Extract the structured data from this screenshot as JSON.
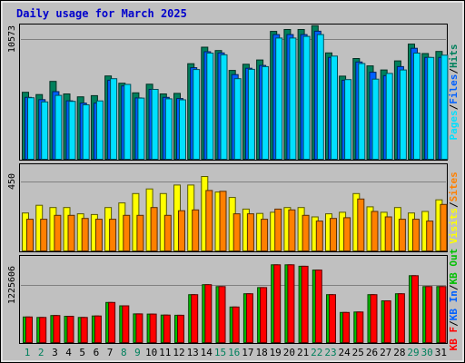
{
  "chart_data": {
    "type": "bar",
    "title": "Daily usage for March 2025",
    "days": [
      "1",
      "2",
      "3",
      "4",
      "5",
      "6",
      "7",
      "8",
      "9",
      "10",
      "11",
      "12",
      "13",
      "14",
      "15",
      "16",
      "17",
      "18",
      "19",
      "20",
      "21",
      "22",
      "23",
      "24",
      "25",
      "26",
      "27",
      "28",
      "29",
      "30",
      "31"
    ],
    "weekend_days": [
      "1",
      "2",
      "8",
      "9",
      "15",
      "16",
      "22",
      "23",
      "29",
      "30"
    ],
    "panels": [
      {
        "id": "traffic_hits",
        "y_tick_label": "10573",
        "y_tick_value": 10573,
        "legend": [
          "Pages",
          "/",
          "Files",
          "/",
          "Hits"
        ],
        "legend_colors": [
          "#00e0ff",
          "#000000",
          "#0060ff",
          "#000000",
          "#00805c"
        ],
        "series": [
          {
            "name": "Hits",
            "color": "#00805c",
            "values": [
              5950,
              5750,
              6900,
              5800,
              5550,
              5650,
              7380,
              6740,
              5900,
              6650,
              5800,
              5850,
              8450,
              9900,
              9600,
              7860,
              8400,
              8780,
              11280,
              11450,
              11450,
              11780,
              9400,
              7360,
              8900,
              8260,
              7900,
              8700,
              10170,
              9340,
              9520
            ]
          },
          {
            "name": "Files",
            "color": "#0060ff",
            "values": [
              5500,
              5300,
              6000,
              5200,
              5000,
              5000,
              7000,
              6500,
              5450,
              6200,
              5500,
              5400,
              8100,
              9500,
              9400,
              7500,
              8050,
              8300,
              11000,
              11000,
              11000,
              11300,
              9000,
              7000,
              8600,
              7700,
              7400,
              8200,
              9800,
              9000,
              9000
            ]
          },
          {
            "name": "Pages",
            "color": "#00e0ff",
            "values": [
              5470,
              5100,
              5680,
              5150,
              4850,
              5190,
              7140,
              6640,
              5440,
              6200,
              5370,
              5290,
              7940,
              9380,
              9230,
              7140,
              7960,
              8200,
              10700,
              10700,
              10840,
              11000,
              9120,
              7060,
              8470,
              7100,
              7600,
              7900,
              9380,
              9000,
              9200
            ]
          }
        ]
      },
      {
        "id": "visits_sites",
        "y_tick_label": "450",
        "y_tick_value": 450,
        "legend": [
          "Visits",
          "/",
          "Sites"
        ],
        "legend_colors": [
          "#ffff00",
          "#000000",
          "#ff8000"
        ],
        "series": [
          {
            "name": "Visits",
            "color": "#ffff00",
            "values": [
              250,
              300,
              285,
              285,
              245,
              240,
              285,
              315,
              375,
              405,
              375,
              430,
              430,
              485,
              385,
              350,
              275,
              247,
              255,
              285,
              285,
              225,
              245,
              255,
              375,
              290,
              255,
              285,
              250,
              260,
              335
            ]
          },
          {
            "name": "Sites",
            "color": "#ff8000",
            "values": [
              210,
              210,
              235,
              235,
              215,
              210,
              210,
              235,
              235,
              285,
              235,
              265,
              270,
              395,
              390,
              245,
              245,
              210,
              275,
              270,
              235,
              198,
              215,
              220,
              340,
              260,
              225,
              210,
              210,
              198,
              305
            ]
          }
        ]
      },
      {
        "id": "kbytes",
        "y_tick_label": "1225606",
        "y_tick_value": 1225606,
        "legend": [
          "KB F",
          "/",
          "KB In",
          "/",
          "KB Out"
        ],
        "legend_colors": [
          "#ff0000",
          "#000000",
          "#0060ff",
          "#000000",
          "#00c000"
        ],
        "series": [
          {
            "name": "KB Out",
            "color": "#00c000",
            "values": [
              560000,
              550000,
              590000,
              575000,
              550000,
              580000,
              865000,
              795000,
              625000,
              620000,
              600000,
              595000,
              1030000,
              1240000,
              1200000,
              770000,
              1050000,
              1180000,
              1660000,
              1660000,
              1630000,
              1550000,
              1030000,
              655000,
              665000,
              1030000,
              900000,
              1050000,
              1430000,
              1200000,
              1200000
            ]
          },
          {
            "name": "KB F",
            "color": "#ff0000",
            "values": [
              560000,
              550000,
              590000,
              575000,
              550000,
              580000,
              865000,
              795000,
              625000,
              620000,
              600000,
              595000,
              1030000,
              1240000,
              1200000,
              770000,
              1050000,
              1180000,
              1660000,
              1660000,
              1630000,
              1550000,
              1030000,
              655000,
              665000,
              1030000,
              900000,
              1050000,
              1430000,
              1200000,
              1200000
            ]
          }
        ]
      }
    ]
  }
}
